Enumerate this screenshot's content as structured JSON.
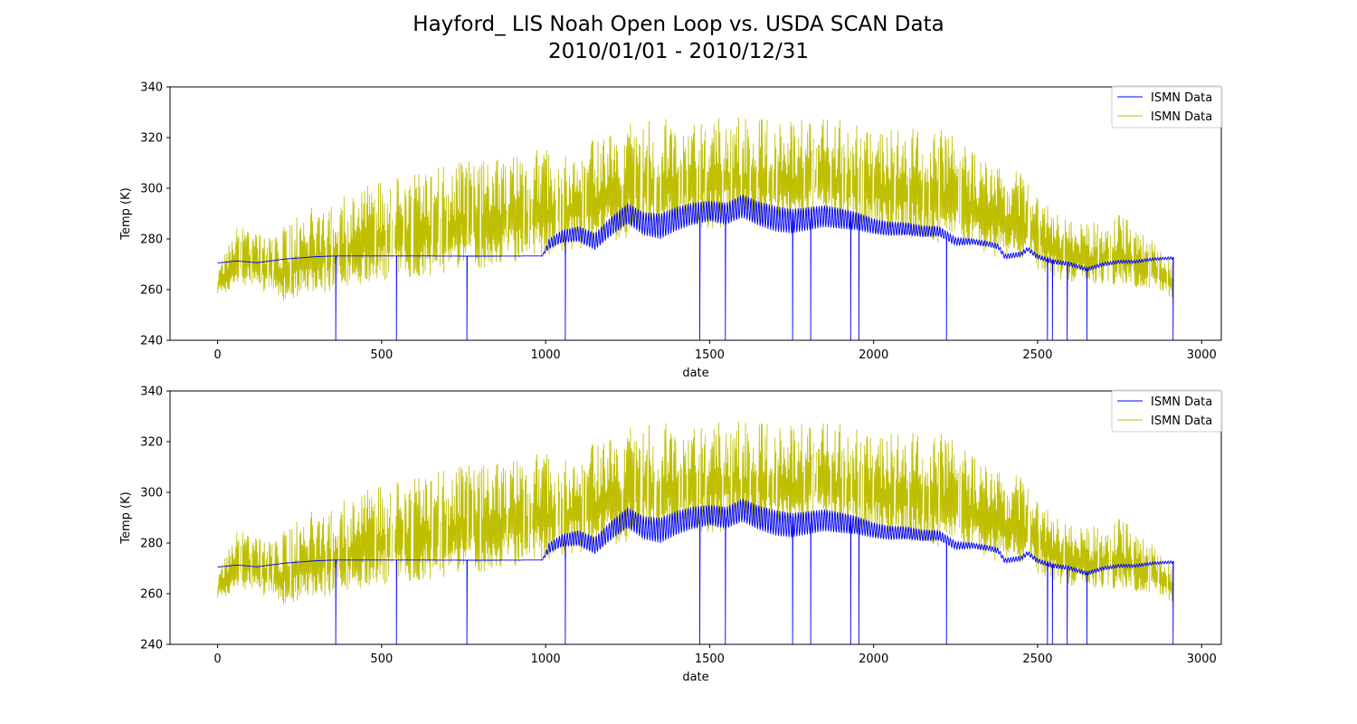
{
  "figure": {
    "title_line1": "Hayford_ LIS Noah Open Loop vs. USDA SCAN Data",
    "title_line2": "2010/01/01 - 2010/12/31"
  },
  "colors": {
    "series_1": "#0000ff",
    "series_2": "#bfbf00",
    "axis": "#000000"
  },
  "chart_data": [
    {
      "type": "line",
      "xlabel": "date",
      "ylabel": "Temp (K)",
      "xlim": [
        -145,
        3060
      ],
      "ylim": [
        240,
        340
      ],
      "xticks": [
        0,
        500,
        1000,
        1500,
        2000,
        2500,
        3000
      ],
      "yticks": [
        240,
        260,
        280,
        300,
        320,
        340
      ],
      "xtick_labels": [
        "0",
        "500",
        "1000",
        "1500",
        "2000",
        "2500",
        "3000"
      ],
      "ytick_labels": [
        "240",
        "260",
        "280",
        "300",
        "320",
        "340"
      ],
      "legend_position": "top-right",
      "grid": false,
      "series": [
        {
          "name": "ISMN Data",
          "color_key": "series_1",
          "baseline": [
            [
              0,
              270.5
            ],
            [
              60,
              271.3
            ],
            [
              120,
              270.6
            ],
            [
              200,
              272.0
            ],
            [
              300,
              273.0
            ],
            [
              360,
              273.3
            ],
            [
              600,
              273.3
            ],
            [
              800,
              273.2
            ],
            [
              990,
              273.3
            ],
            [
              1010,
              278
            ],
            [
              1050,
              281
            ],
            [
              1100,
              282
            ],
            [
              1150,
              279
            ],
            [
              1200,
              285
            ],
            [
              1250,
              290
            ],
            [
              1300,
              286
            ],
            [
              1350,
              285
            ],
            [
              1400,
              288
            ],
            [
              1450,
              290
            ],
            [
              1500,
              291
            ],
            [
              1550,
              290
            ],
            [
              1600,
              293
            ],
            [
              1650,
              290
            ],
            [
              1700,
              288
            ],
            [
              1750,
              287
            ],
            [
              1800,
              288
            ],
            [
              1850,
              289
            ],
            [
              1900,
              288
            ],
            [
              1950,
              287
            ],
            [
              2000,
              285
            ],
            [
              2050,
              284
            ],
            [
              2100,
              284
            ],
            [
              2150,
              283
            ],
            [
              2200,
              283
            ],
            [
              2250,
              279
            ],
            [
              2300,
              279
            ],
            [
              2350,
              278
            ],
            [
              2380,
              277
            ],
            [
              2400,
              273
            ],
            [
              2450,
              274
            ],
            [
              2470,
              276
            ],
            [
              2500,
              273
            ],
            [
              2550,
              271
            ],
            [
              2600,
              270
            ],
            [
              2650,
              268
            ],
            [
              2700,
              270
            ],
            [
              2750,
              271
            ],
            [
              2800,
              271
            ],
            [
              2850,
              272
            ],
            [
              2913,
              272.5
            ]
          ],
          "osc_amplitude": [
            [
              0,
              0
            ],
            [
              990,
              0
            ],
            [
              1010,
              2
            ],
            [
              1100,
              3
            ],
            [
              1250,
              4
            ],
            [
              1350,
              5
            ],
            [
              1500,
              4
            ],
            [
              1700,
              5
            ],
            [
              1900,
              4
            ],
            [
              2000,
              3
            ],
            [
              2200,
              2
            ],
            [
              2300,
              1
            ],
            [
              2900,
              0.5
            ]
          ],
          "dropouts_x": [
            360,
            545,
            760,
            1060,
            1470,
            1548,
            1753,
            1808,
            1930,
            1955,
            2222,
            2530,
            2545,
            2590,
            2650,
            2913
          ],
          "dropout_bottom": 240
        },
        {
          "name": "ISMN Data",
          "color_key": "series_2",
          "x_start": 0,
          "x_end": 2913,
          "low_envelope": [
            [
              0,
              258
            ],
            [
              100,
              262
            ],
            [
              200,
              255
            ],
            [
              300,
              258
            ],
            [
              400,
              261
            ],
            [
              500,
              263
            ],
            [
              600,
              265
            ],
            [
              700,
              266
            ],
            [
              800,
              268
            ],
            [
              900,
              270
            ],
            [
              1000,
              272
            ],
            [
              1100,
              275
            ],
            [
              1200,
              278
            ],
            [
              1300,
              281
            ],
            [
              1400,
              283
            ],
            [
              1500,
              284
            ],
            [
              1600,
              285
            ],
            [
              1700,
              285
            ],
            [
              1800,
              285
            ],
            [
              1900,
              284
            ],
            [
              2000,
              282
            ],
            [
              2100,
              280
            ],
            [
              2200,
              278
            ],
            [
              2300,
              275
            ],
            [
              2400,
              272
            ],
            [
              2500,
              268
            ],
            [
              2600,
              262
            ],
            [
              2700,
              262
            ],
            [
              2800,
              261
            ],
            [
              2913,
              255
            ]
          ],
          "high_envelope": [
            [
              0,
              268
            ],
            [
              60,
              288
            ],
            [
              150,
              280
            ],
            [
              250,
              290
            ],
            [
              350,
              297
            ],
            [
              450,
              302
            ],
            [
              550,
              306
            ],
            [
              650,
              308
            ],
            [
              750,
              311
            ],
            [
              850,
              312
            ],
            [
              950,
              315
            ],
            [
              1050,
              316
            ],
            [
              1150,
              320
            ],
            [
              1250,
              326
            ],
            [
              1350,
              328
            ],
            [
              1450,
              331
            ],
            [
              1550,
              329
            ],
            [
              1650,
              329
            ],
            [
              1750,
              327
            ],
            [
              1850,
              330
            ],
            [
              1950,
              326
            ],
            [
              2050,
              324
            ],
            [
              2150,
              324
            ],
            [
              2250,
              322
            ],
            [
              2350,
              310
            ],
            [
              2450,
              306
            ],
            [
              2550,
              290
            ],
            [
              2650,
              286
            ],
            [
              2750,
              290
            ],
            [
              2850,
              280
            ],
            [
              2913,
              272
            ]
          ]
        }
      ]
    },
    {
      "type": "line",
      "xlabel": "date",
      "ylabel": "Temp (K)",
      "xlim": [
        -145,
        3060
      ],
      "ylim": [
        240,
        340
      ],
      "xticks": [
        0,
        500,
        1000,
        1500,
        2000,
        2500,
        3000
      ],
      "yticks": [
        240,
        260,
        280,
        300,
        320,
        340
      ],
      "xtick_labels": [
        "0",
        "500",
        "1000",
        "1500",
        "2000",
        "2500",
        "3000"
      ],
      "ytick_labels": [
        "240",
        "260",
        "280",
        "300",
        "320",
        "340"
      ],
      "legend_position": "top-right",
      "grid": false,
      "series": [
        {
          "name": "ISMN Data",
          "color_key": "series_1",
          "baseline": [
            [
              0,
              270.5
            ],
            [
              60,
              271.3
            ],
            [
              120,
              270.6
            ],
            [
              200,
              272.0
            ],
            [
              300,
              273.0
            ],
            [
              360,
              273.3
            ],
            [
              600,
              273.3
            ],
            [
              800,
              273.2
            ],
            [
              990,
              273.3
            ],
            [
              1010,
              278
            ],
            [
              1050,
              281
            ],
            [
              1100,
              282
            ],
            [
              1150,
              279
            ],
            [
              1200,
              285
            ],
            [
              1250,
              290
            ],
            [
              1300,
              286
            ],
            [
              1350,
              285
            ],
            [
              1400,
              288
            ],
            [
              1450,
              290
            ],
            [
              1500,
              291
            ],
            [
              1550,
              290
            ],
            [
              1600,
              293
            ],
            [
              1650,
              290
            ],
            [
              1700,
              288
            ],
            [
              1750,
              287
            ],
            [
              1800,
              288
            ],
            [
              1850,
              289
            ],
            [
              1900,
              288
            ],
            [
              1950,
              287
            ],
            [
              2000,
              285
            ],
            [
              2050,
              284
            ],
            [
              2100,
              284
            ],
            [
              2150,
              283
            ],
            [
              2200,
              283
            ],
            [
              2250,
              279
            ],
            [
              2300,
              279
            ],
            [
              2350,
              278
            ],
            [
              2380,
              277
            ],
            [
              2400,
              273
            ],
            [
              2450,
              274
            ],
            [
              2470,
              276
            ],
            [
              2500,
              273
            ],
            [
              2550,
              271
            ],
            [
              2600,
              270
            ],
            [
              2650,
              268
            ],
            [
              2700,
              270
            ],
            [
              2750,
              271
            ],
            [
              2800,
              271
            ],
            [
              2850,
              272
            ],
            [
              2913,
              272.5
            ]
          ],
          "osc_amplitude": [
            [
              0,
              0
            ],
            [
              990,
              0
            ],
            [
              1010,
              2
            ],
            [
              1100,
              3
            ],
            [
              1250,
              4
            ],
            [
              1350,
              5
            ],
            [
              1500,
              4
            ],
            [
              1700,
              5
            ],
            [
              1900,
              4
            ],
            [
              2000,
              3
            ],
            [
              2200,
              2
            ],
            [
              2300,
              1
            ],
            [
              2900,
              0.5
            ]
          ],
          "dropouts_x": [
            360,
            545,
            760,
            1060,
            1470,
            1548,
            1753,
            1808,
            1930,
            1955,
            2222,
            2530,
            2545,
            2590,
            2650,
            2913
          ],
          "dropout_bottom": 240
        },
        {
          "name": "ISMN Data",
          "color_key": "series_2",
          "x_start": 0,
          "x_end": 2913,
          "low_envelope": [
            [
              0,
              258
            ],
            [
              100,
              262
            ],
            [
              200,
              255
            ],
            [
              300,
              258
            ],
            [
              400,
              261
            ],
            [
              500,
              263
            ],
            [
              600,
              265
            ],
            [
              700,
              266
            ],
            [
              800,
              268
            ],
            [
              900,
              270
            ],
            [
              1000,
              272
            ],
            [
              1100,
              275
            ],
            [
              1200,
              278
            ],
            [
              1300,
              281
            ],
            [
              1400,
              283
            ],
            [
              1500,
              284
            ],
            [
              1600,
              285
            ],
            [
              1700,
              285
            ],
            [
              1800,
              285
            ],
            [
              1900,
              284
            ],
            [
              2000,
              282
            ],
            [
              2100,
              280
            ],
            [
              2200,
              278
            ],
            [
              2300,
              275
            ],
            [
              2400,
              272
            ],
            [
              2500,
              268
            ],
            [
              2600,
              262
            ],
            [
              2700,
              262
            ],
            [
              2800,
              261
            ],
            [
              2913,
              255
            ]
          ],
          "high_envelope": [
            [
              0,
              268
            ],
            [
              60,
              288
            ],
            [
              150,
              280
            ],
            [
              250,
              290
            ],
            [
              350,
              297
            ],
            [
              450,
              302
            ],
            [
              550,
              306
            ],
            [
              650,
              308
            ],
            [
              750,
              311
            ],
            [
              850,
              312
            ],
            [
              950,
              315
            ],
            [
              1050,
              316
            ],
            [
              1150,
              320
            ],
            [
              1250,
              326
            ],
            [
              1350,
              328
            ],
            [
              1450,
              331
            ],
            [
              1550,
              329
            ],
            [
              1650,
              329
            ],
            [
              1750,
              327
            ],
            [
              1850,
              330
            ],
            [
              1950,
              326
            ],
            [
              2050,
              324
            ],
            [
              2150,
              324
            ],
            [
              2250,
              322
            ],
            [
              2350,
              310
            ],
            [
              2450,
              306
            ],
            [
              2550,
              290
            ],
            [
              2650,
              286
            ],
            [
              2750,
              290
            ],
            [
              2850,
              280
            ],
            [
              2913,
              272
            ]
          ]
        }
      ]
    }
  ]
}
